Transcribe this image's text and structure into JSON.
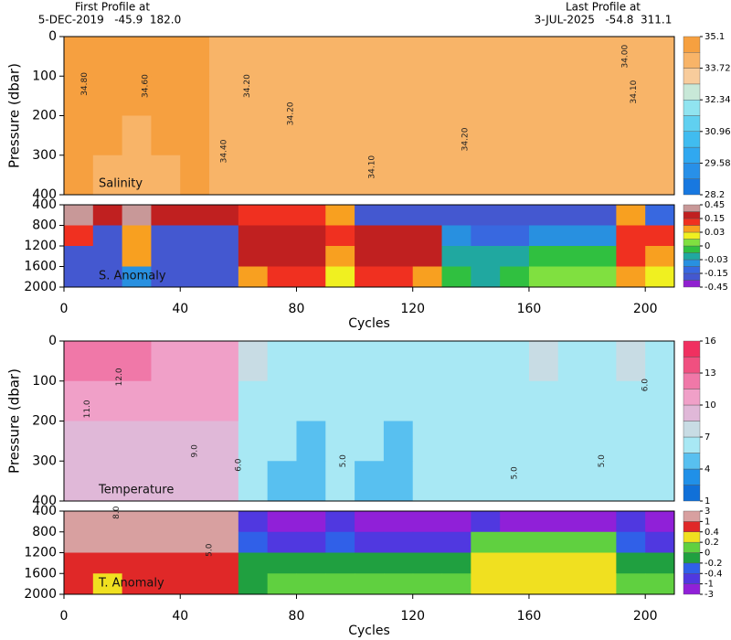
{
  "header": {
    "first_title": "First Profile at",
    "first_info": "5-DEC-2019   -45.9  182.0",
    "last_title": "Last Profile at",
    "last_info": "3-JUL-2025   -54.8  311.1"
  },
  "chart_data": [
    {
      "type": "heatmap",
      "title": "Salinity",
      "ylabel": "Pressure (dbar)",
      "x": [
        0,
        10,
        20,
        30,
        40,
        50,
        60,
        70,
        80,
        90,
        100,
        110,
        120,
        130,
        140,
        150,
        160,
        170,
        180,
        190,
        200,
        210
      ],
      "y": [
        0,
        100,
        200,
        300,
        400
      ],
      "z": [
        [
          34.6,
          34.6,
          34.5,
          34.5,
          34.5,
          34.4,
          34.3,
          34.2,
          34.2,
          34.2,
          34.2,
          34.2,
          34.2,
          34.2,
          34.2,
          34.2,
          34.2,
          34.2,
          34.2,
          34.1,
          34.1
        ],
        [
          34.5,
          34.5,
          34.5,
          34.5,
          34.5,
          34.4,
          34.2,
          34.2,
          34.2,
          34.2,
          34.2,
          34.2,
          34.2,
          34.2,
          34.2,
          34.2,
          34.2,
          34.2,
          34.2,
          34.1,
          34.1
        ],
        [
          34.5,
          34.5,
          34.4,
          34.5,
          34.5,
          34.4,
          34.2,
          34.2,
          34.2,
          34.2,
          34.2,
          34.2,
          34.2,
          34.2,
          34.2,
          34.2,
          34.2,
          34.2,
          34.2,
          34.1,
          34.1
        ],
        [
          34.5,
          34.4,
          34.4,
          34.4,
          34.5,
          34.4,
          34.2,
          34.2,
          34.2,
          34.1,
          34.1,
          34.2,
          34.2,
          34.2,
          34.2,
          34.2,
          34.2,
          34.2,
          34.2,
          34.1,
          34.1
        ]
      ],
      "xlim": [
        0,
        210
      ],
      "ylim": [
        0,
        400
      ],
      "yticks": [
        0,
        100,
        200,
        300,
        400
      ],
      "colorbar": {
        "levels": [
          28.2,
          28.89,
          29.58,
          30.27,
          30.96,
          31.65,
          32.34,
          33.03,
          33.72,
          34.41,
          35.1
        ],
        "colors": [
          "#1878e0",
          "#2890e8",
          "#30a8f0",
          "#40bcf0",
          "#60d0f0",
          "#90e4f0",
          "#c8e8d8",
          "#f8cc9c",
          "#f8b468",
          "#f6a040"
        ],
        "ticks": [
          35.1,
          33.72,
          32.34,
          30.96,
          29.58,
          28.2
        ]
      },
      "contour_labels": [
        {
          "cycle": 7,
          "pressure": 120,
          "label": "34.80"
        },
        {
          "cycle": 28,
          "pressure": 125,
          "label": "34.60"
        },
        {
          "cycle": 55,
          "pressure": 290,
          "label": "34.40"
        },
        {
          "cycle": 63,
          "pressure": 125,
          "label": "34.20"
        },
        {
          "cycle": 78,
          "pressure": 195,
          "label": "34.20"
        },
        {
          "cycle": 106,
          "pressure": 330,
          "label": "34.10"
        },
        {
          "cycle": 138,
          "pressure": 260,
          "label": "34.20"
        },
        {
          "cycle": 193,
          "pressure": 50,
          "label": "34.00"
        },
        {
          "cycle": 196,
          "pressure": 140,
          "label": "34.10"
        }
      ]
    },
    {
      "type": "heatmap",
      "title": "S. Anomaly",
      "xlabel": "Cycles",
      "x": [
        0,
        10,
        20,
        30,
        40,
        50,
        60,
        70,
        80,
        90,
        100,
        110,
        120,
        130,
        140,
        150,
        160,
        170,
        180,
        190,
        200,
        210
      ],
      "y": [
        400,
        800,
        1200,
        1600,
        2000
      ],
      "z": [
        [
          0.3,
          0.2,
          0.3,
          0.2,
          0.2,
          0.2,
          0.1,
          0.1,
          0.1,
          0.05,
          -0.2,
          -0.2,
          -0.2,
          -0.2,
          -0.2,
          -0.2,
          -0.2,
          -0.2,
          -0.2,
          0.05,
          -0.1
        ],
        [
          0.1,
          -0.2,
          0.05,
          -0.2,
          -0.2,
          -0.2,
          0.2,
          0.2,
          0.2,
          0.1,
          0.2,
          0.2,
          0.2,
          -0.05,
          -0.1,
          -0.1,
          -0.05,
          -0.05,
          -0.05,
          0.1,
          0.1
        ],
        [
          -0.2,
          -0.25,
          0.05,
          -0.2,
          -0.2,
          -0.2,
          0.2,
          0.2,
          0.2,
          0.05,
          0.2,
          0.2,
          0.15,
          -0.02,
          -0.03,
          -0.02,
          -0.01,
          -0.01,
          -0.01,
          0.1,
          0.05
        ],
        [
          -0.2,
          -0.25,
          -0.05,
          -0.2,
          -0.2,
          -0.2,
          0.05,
          0.1,
          0.1,
          0.02,
          0.1,
          0.1,
          0.05,
          -0.01,
          -0.02,
          -0.01,
          0.005,
          0.005,
          0.005,
          0.05,
          0.02
        ]
      ],
      "xlim": [
        0,
        210
      ],
      "ylim": [
        400,
        2000
      ],
      "yticks": [
        400,
        800,
        1200,
        1600,
        2000
      ],
      "xticks": [
        0,
        40,
        80,
        120,
        160,
        200
      ],
      "colorbar": {
        "levels": [
          -0.45,
          -0.3,
          -0.15,
          -0.09,
          -0.03,
          -0.015,
          0,
          0.015,
          0.03,
          0.09,
          0.15,
          0.3,
          0.45
        ],
        "colors": [
          "#9020d0",
          "#4458d0",
          "#3868e0",
          "#2890e0",
          "#20a8a0",
          "#30c040",
          "#80e040",
          "#f0f020",
          "#f8a020",
          "#f03020",
          "#c02020",
          "#c89898"
        ],
        "ticks": [
          0.45,
          0.15,
          0.03,
          0,
          -0.03,
          -0.15,
          -0.45
        ]
      },
      "contour_labels": []
    },
    {
      "type": "heatmap",
      "title": "Temperature",
      "ylabel": "Pressure (dbar)",
      "x": [
        0,
        10,
        20,
        30,
        40,
        50,
        60,
        70,
        80,
        90,
        100,
        110,
        120,
        130,
        140,
        150,
        160,
        170,
        180,
        190,
        200,
        210
      ],
      "y": [
        0,
        100,
        200,
        300,
        400
      ],
      "z": [
        [
          12.5,
          12,
          11.5,
          11,
          11,
          10.5,
          7,
          6,
          6,
          6,
          6,
          6,
          6,
          6,
          6,
          6,
          7.5,
          6,
          6,
          7.5,
          6
        ],
        [
          11,
          10.5,
          10.5,
          10,
          10,
          10,
          6.5,
          6,
          6,
          6,
          6,
          6,
          6,
          6,
          6,
          6,
          6,
          6,
          6,
          6,
          6
        ],
        [
          9.5,
          9.5,
          9,
          9,
          9,
          9,
          6,
          6,
          4.5,
          6,
          6,
          4.5,
          6,
          6,
          6,
          6,
          6,
          6,
          6,
          6,
          6
        ],
        [
          8.5,
          8.5,
          8.5,
          8.5,
          8.5,
          8.5,
          6,
          4.5,
          4.5,
          6,
          4.5,
          4.5,
          6,
          6,
          6,
          6,
          6,
          6,
          6,
          6,
          6
        ]
      ],
      "xlim": [
        0,
        210
      ],
      "ylim": [
        0,
        400
      ],
      "yticks": [
        0,
        100,
        200,
        300,
        400
      ],
      "colorbar": {
        "levels": [
          1,
          2.5,
          4,
          5.5,
          7,
          8.5,
          10,
          11.5,
          13,
          14.5,
          16
        ],
        "colors": [
          "#1070d8",
          "#2090e8",
          "#58c0f0",
          "#a8e8f4",
          "#c8dce4",
          "#e0b8d8",
          "#f0a0c8",
          "#f078a8",
          "#f05080",
          "#f03060"
        ],
        "ticks": [
          16,
          13,
          10,
          7,
          4,
          1
        ]
      },
      "contour_labels": [
        {
          "cycle": 19,
          "pressure": 90,
          "label": "12.0"
        },
        {
          "cycle": 8,
          "pressure": 170,
          "label": "11.0"
        },
        {
          "cycle": 45,
          "pressure": 275,
          "label": "9.0"
        },
        {
          "cycle": 60,
          "pressure": 310,
          "label": "6.0"
        },
        {
          "cycle": 96,
          "pressure": 300,
          "label": "5.0"
        },
        {
          "cycle": 155,
          "pressure": 330,
          "label": "5.0"
        },
        {
          "cycle": 185,
          "pressure": 300,
          "label": "5.0"
        },
        {
          "cycle": 200,
          "pressure": 110,
          "label": "6.0"
        }
      ]
    },
    {
      "type": "heatmap",
      "title": "T. Anomaly",
      "xlabel": "Cycles",
      "x": [
        0,
        10,
        20,
        30,
        40,
        50,
        60,
        70,
        80,
        90,
        100,
        110,
        120,
        130,
        140,
        150,
        160,
        170,
        180,
        190,
        200,
        210
      ],
      "y": [
        400,
        800,
        1200,
        1600,
        2000
      ],
      "z": [
        [
          2,
          2,
          2.5,
          2,
          2,
          2,
          -0.5,
          -1.5,
          -1.5,
          -0.5,
          -1.5,
          -1.5,
          -1.5,
          -1.5,
          -0.5,
          -1.5,
          -1.5,
          -1.5,
          -1.5,
          -0.5,
          -1.5
        ],
        [
          1.5,
          1,
          1.5,
          2,
          2,
          1.5,
          -0.3,
          -0.5,
          -0.5,
          -0.3,
          -0.5,
          -0.5,
          -0.5,
          -0.5,
          0.1,
          0.1,
          0.1,
          0.1,
          0.1,
          -0.3,
          -0.5
        ],
        [
          0.7,
          0.5,
          0.5,
          0.7,
          0.7,
          0.7,
          -0.1,
          -0.1,
          -0.1,
          -0.1,
          -0.1,
          -0.1,
          -0.1,
          -0.1,
          0.3,
          0.3,
          0.3,
          0.3,
          0.3,
          -0.1,
          -0.1
        ],
        [
          0.7,
          0.3,
          0.5,
          0.7,
          0.7,
          0.7,
          -0.1,
          0.1,
          0.1,
          0.1,
          0.1,
          0.1,
          0.1,
          0.1,
          0.3,
          0.3,
          0.3,
          0.3,
          0.3,
          0.1,
          0.1
        ]
      ],
      "xlim": [
        0,
        210
      ],
      "ylim": [
        400,
        2000
      ],
      "yticks": [
        400,
        800,
        1200,
        1600,
        2000
      ],
      "xticks": [
        0,
        40,
        80,
        120,
        160,
        200
      ],
      "colorbar": {
        "levels": [
          -3,
          -1,
          -0.4,
          -0.2,
          0,
          0.2,
          0.4,
          1,
          3
        ],
        "colors": [
          "#9020d8",
          "#5038e0",
          "#3060e8",
          "#20a040",
          "#60d040",
          "#f0e020",
          "#e02828",
          "#d8a0a0"
        ],
        "ticks": [
          3,
          1,
          0.4,
          0.2,
          0,
          -0.2,
          -0.4,
          -1,
          -3
        ]
      },
      "contour_labels": [
        {
          "cycle": 18,
          "pressure": 430,
          "label": "8.0"
        },
        {
          "cycle": 50,
          "pressure": 1150,
          "label": "5.0"
        }
      ]
    }
  ]
}
